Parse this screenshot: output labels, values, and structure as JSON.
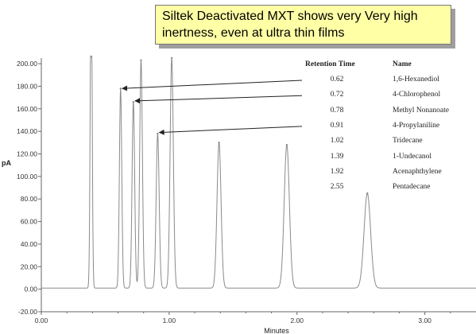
{
  "callout": {
    "line1": "Siltek Deactivated MXT shows very Very high",
    "line2": "inertness, even at ultra thin films"
  },
  "chart_data": {
    "type": "line",
    "ylabel": "pA",
    "xlabel": "Minutes",
    "xlim": [
      0.0,
      3.4
    ],
    "ylim": [
      -20,
      205
    ],
    "x_ticks": [
      "0.00",
      "1.00",
      "2.00",
      "3.00"
    ],
    "y_ticks": [
      "-20.00",
      "0.00",
      "20.00",
      "40.00",
      "60.00",
      "80.00",
      "100.00",
      "120.00",
      "140.00",
      "160.00",
      "180.00",
      "200.00"
    ],
    "grid": false,
    "baseline": 1,
    "series": [
      {
        "values": [
          {
            "rt": 0.39,
            "height": 300
          },
          {
            "rt": 0.62,
            "height": 178
          },
          {
            "rt": 0.72,
            "height": 166
          },
          {
            "rt": 0.78,
            "height": 203
          },
          {
            "rt": 0.91,
            "height": 138
          },
          {
            "rt": 1.02,
            "height": 205
          },
          {
            "rt": 1.39,
            "height": 130
          },
          {
            "rt": 1.92,
            "height": 128
          },
          {
            "rt": 2.55,
            "height": 85
          }
        ]
      }
    ],
    "arrows": [
      {
        "from_rt": 0.62,
        "to_rt": 0.62,
        "to_y": 178
      },
      {
        "from_rt": 0.72,
        "to_rt": 0.72,
        "to_y": 167
      },
      {
        "from_rt": 0.91,
        "to_rt": 0.91,
        "to_y": 139
      }
    ],
    "legend": {
      "header_rt": "Retention Time",
      "header_name": "Name",
      "rows": [
        {
          "rt": "0.62",
          "name": "1,6-Hexanediol"
        },
        {
          "rt": "0.72",
          "name": "4-Chlorophenol"
        },
        {
          "rt": "0.78",
          "name": "Methyl Nonanoate"
        },
        {
          "rt": "0.91",
          "name": "4-Propylaniline"
        },
        {
          "rt": "1.02",
          "name": "Tridecane"
        },
        {
          "rt": "1.39",
          "name": "1-Undecanol"
        },
        {
          "rt": "1.92",
          "name": "Acenaphthylene"
        },
        {
          "rt": "2.55",
          "name": "Pentadecane"
        }
      ]
    },
    "colors": {
      "trace": "#8a8a8a",
      "axis": "#666666",
      "arrow": "#222222"
    }
  }
}
